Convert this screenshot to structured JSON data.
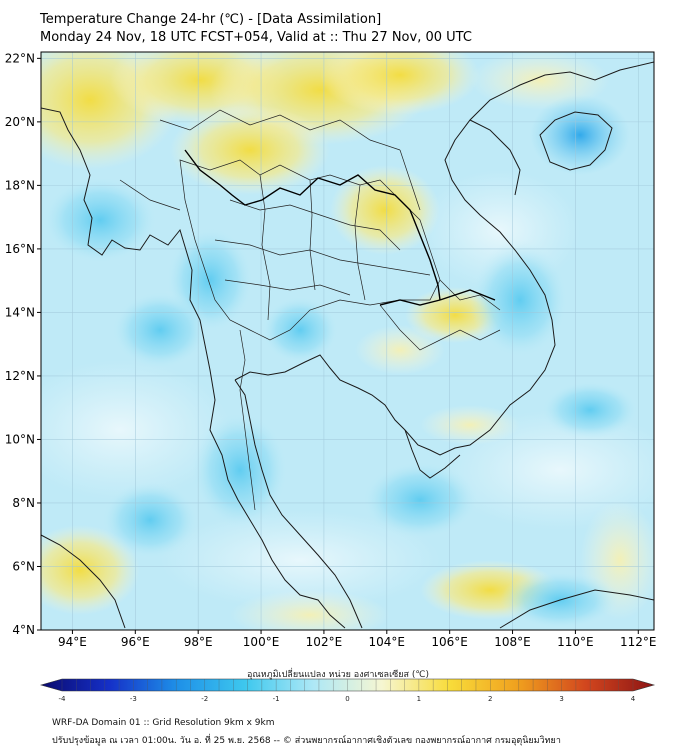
{
  "title_line1": "Temperature Change 24-hr (℃) - [Data Assimilation]",
  "title_line2": "Monday 24 Nov, 18 UTC FCST+054, Valid at :: Thu 27 Nov, 00 UTC",
  "map": {
    "lon_ticks": [
      "94°E",
      "96°E",
      "98°E",
      "100°E",
      "102°E",
      "104°E",
      "106°E",
      "108°E",
      "110°E",
      "112°E"
    ],
    "lat_ticks": [
      "22°N",
      "20°N",
      "18°N",
      "16°N",
      "14°N",
      "12°N",
      "10°N",
      "8°N",
      "6°N",
      "4°N"
    ],
    "lon_range": [
      93,
      112.5
    ],
    "lat_range": [
      4,
      22.2
    ]
  },
  "colorbar": {
    "label": "อุณหภูมิเปลี่ยนแปลง หน่วย องศาเซลเซียส (℃)",
    "ticks": [
      "-4",
      "-3",
      "-2",
      "-1",
      "0",
      "1",
      "2",
      "3",
      "4"
    ],
    "range": [
      -4,
      4
    ],
    "colors": [
      "#0a0a6e",
      "#1530c8",
      "#1e90e8",
      "#3ec8ee",
      "#aee8f6",
      "#f6f6d2",
      "#f8dc3a",
      "#f0a01e",
      "#d2461e",
      "#8c1414"
    ]
  },
  "footer_line1": "WRF-DA Domain 01 :: Grid Resolution 9km x 9km",
  "footer_line2": "ปรับปรุงข้อมูล ณ เวลา 01:00น. วัน อ. ที่ 25 พ.ย. 2568 -- © ส่วนพยากรณ์อากาศเชิงตัวเลข กองพยากรณ์อากาศ กรมอุตุนิยมวิทยา"
}
